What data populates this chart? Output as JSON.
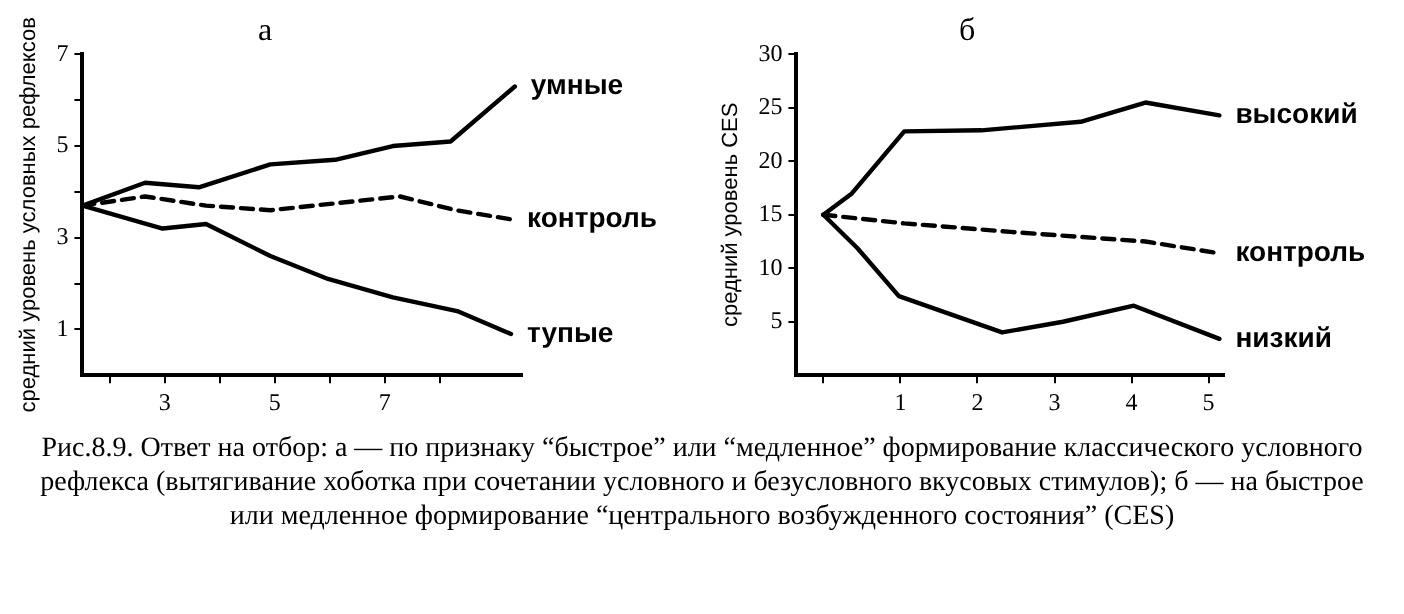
{
  "chart_data": [
    {
      "type": "line",
      "title": "а",
      "ylabel": "средний уровень условных рефлексов",
      "xlim": [
        1.5,
        9.5
      ],
      "xticks": [
        {
          "value": 2,
          "label": null
        },
        3,
        {
          "value": 4,
          "label": null
        },
        5,
        {
          "value": 6,
          "label": null
        },
        7,
        {
          "value": 8,
          "label": null
        }
      ],
      "ylim": [
        0,
        7
      ],
      "yticks": [
        1,
        {
          "value": 2,
          "label": null
        },
        3,
        {
          "value": 4,
          "label": null
        },
        5,
        {
          "value": 6,
          "label": null
        },
        7
      ],
      "grid": false,
      "legend": false,
      "marker": "none",
      "series": [
        {
          "name": "умные",
          "color": "#000000",
          "line_style": "solid",
          "x": [
            1.5,
            2.64,
            3.62,
            4.92,
            6.1,
            7.15,
            8.2,
            9.37
          ],
          "values": [
            3.7,
            4.2,
            4.1,
            4.6,
            4.7,
            5.0,
            5.1,
            6.3
          ]
        },
        {
          "name": "контроль",
          "color": "#000000",
          "line_style": "dashed",
          "x": [
            1.5,
            2.64,
            3.75,
            4.92,
            7.28,
            8.3,
            9.3
          ],
          "values": [
            3.7,
            3.9,
            3.7,
            3.6,
            3.9,
            3.6,
            3.4
          ]
        },
        {
          "name": "тупые",
          "color": "#000000",
          "line_style": "solid",
          "x": [
            1.5,
            2.96,
            3.75,
            4.92,
            5.97,
            7.15,
            8.32,
            9.3
          ],
          "values": [
            3.7,
            3.2,
            3.3,
            2.6,
            2.1,
            1.7,
            1.4,
            0.9
          ]
        }
      ],
      "annotations": [
        "Рис.8.9. Ответ на отбор: а — по признаку “быстрое” или “медленное” формирование классического условного рефлекса (вытягивание хоботка при сочетании условного и безусловного вкусовых стимулов); б — на быстрое или медленное формирование “центрального возбужденного состояния” (CES)"
      ]
    },
    {
      "type": "line",
      "title": "б",
      "ylabel": "средний уровень CES",
      "xlim": [
        -0.35,
        5.2
      ],
      "xticks": [
        {
          "value": 0,
          "label": null
        },
        1,
        2,
        3,
        4,
        5
      ],
      "ylim": [
        0,
        30
      ],
      "yticks": [
        5,
        10,
        15,
        20,
        25,
        30
      ],
      "grid": false,
      "legend": false,
      "marker": "none",
      "series": [
        {
          "name": "высокий",
          "color": "#000000",
          "line_style": "solid",
          "x": [
            0,
            0.37,
            1.05,
            2.05,
            3.34,
            4.18,
            5.14
          ],
          "values": [
            15,
            17,
            22.8,
            22.9,
            23.7,
            25.5,
            24.3
          ]
        },
        {
          "name": "контроль",
          "color": "#000000",
          "line_style": "dashed",
          "x": [
            0,
            1.05,
            2.43,
            4.18,
            5.14
          ],
          "values": [
            15,
            14.2,
            13.4,
            12.5,
            11.4
          ]
        },
        {
          "name": "низкий",
          "color": "#000000",
          "line_style": "solid",
          "x": [
            0,
            0.44,
            0.98,
            2.32,
            3.11,
            4.03,
            5.14
          ],
          "values": [
            15,
            11.9,
            7.4,
            4.0,
            5.0,
            6.5,
            3.4
          ]
        }
      ]
    }
  ]
}
